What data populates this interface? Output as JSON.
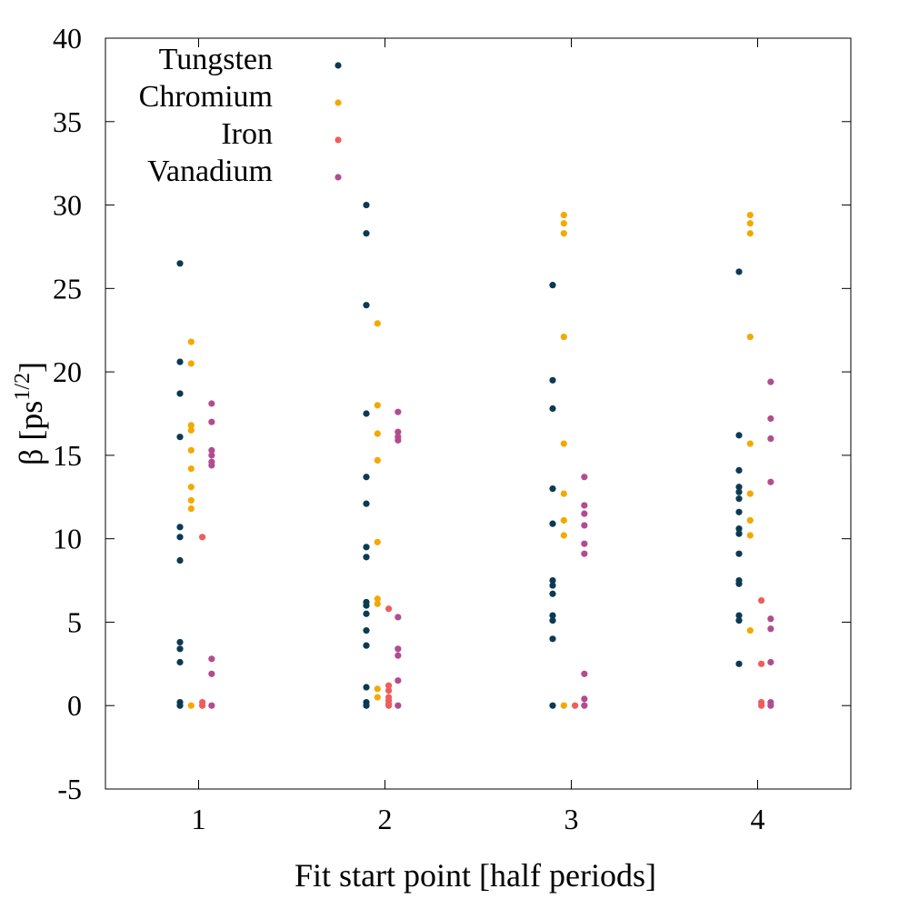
{
  "chart_data": {
    "type": "scatter",
    "title": "",
    "xlabel": "Fit start point [half periods]",
    "ylabel_main": "β [ps",
    "ylabel_exp": "1/2",
    "ylabel_end": "]",
    "xlim": [
      0.5,
      4.5
    ],
    "ylim": [
      -5,
      40
    ],
    "xticks": [
      1,
      2,
      3,
      4
    ],
    "xtick_labels": [
      "1",
      "2",
      "3",
      "4"
    ],
    "yticks": [
      -5,
      0,
      5,
      10,
      15,
      20,
      25,
      30,
      35,
      40
    ],
    "ytick_labels": [
      "-5",
      "0",
      "5",
      "10",
      "15",
      "20",
      "25",
      "30",
      "35",
      "40"
    ],
    "grid": false,
    "legend_position": "top-left",
    "series": [
      {
        "name": "Tungsten",
        "color": "#0b3a53",
        "offset": -0.1,
        "points": [
          [
            1,
            26.5
          ],
          [
            1,
            20.6
          ],
          [
            1,
            18.7
          ],
          [
            1,
            16.1
          ],
          [
            1,
            10.7
          ],
          [
            1,
            10.1
          ],
          [
            1,
            8.7
          ],
          [
            1,
            3.8
          ],
          [
            1,
            3.4
          ],
          [
            1,
            2.6
          ],
          [
            1,
            0.2
          ],
          [
            1,
            0.0
          ],
          [
            2,
            30.0
          ],
          [
            2,
            28.3
          ],
          [
            2,
            24.0
          ],
          [
            2,
            17.5
          ],
          [
            2,
            13.7
          ],
          [
            2,
            12.1
          ],
          [
            2,
            9.5
          ],
          [
            2,
            8.9
          ],
          [
            2,
            6.2
          ],
          [
            2,
            6.0
          ],
          [
            2,
            5.5
          ],
          [
            2,
            4.5
          ],
          [
            2,
            3.6
          ],
          [
            2,
            1.1
          ],
          [
            2,
            0.2
          ],
          [
            2,
            0.0
          ],
          [
            3,
            25.2
          ],
          [
            3,
            19.5
          ],
          [
            3,
            17.8
          ],
          [
            3,
            13.0
          ],
          [
            3,
            10.9
          ],
          [
            3,
            7.5
          ],
          [
            3,
            7.2
          ],
          [
            3,
            6.7
          ],
          [
            3,
            5.4
          ],
          [
            3,
            5.1
          ],
          [
            3,
            4.0
          ],
          [
            3,
            0.0
          ],
          [
            4,
            26.0
          ],
          [
            4,
            16.2
          ],
          [
            4,
            14.1
          ],
          [
            4,
            13.1
          ],
          [
            4,
            12.8
          ],
          [
            4,
            12.4
          ],
          [
            4,
            11.6
          ],
          [
            4,
            10.6
          ],
          [
            4,
            10.3
          ],
          [
            4,
            9.1
          ],
          [
            4,
            7.5
          ],
          [
            4,
            7.3
          ],
          [
            4,
            5.4
          ],
          [
            4,
            5.1
          ],
          [
            4,
            2.5
          ]
        ]
      },
      {
        "name": "Chromium",
        "color": "#f2a900",
        "offset": -0.04,
        "points": [
          [
            1,
            21.8
          ],
          [
            1,
            20.5
          ],
          [
            1,
            16.8
          ],
          [
            1,
            16.5
          ],
          [
            1,
            15.3
          ],
          [
            1,
            14.2
          ],
          [
            1,
            13.1
          ],
          [
            1,
            12.3
          ],
          [
            1,
            11.8
          ],
          [
            1,
            0.0
          ],
          [
            2,
            22.9
          ],
          [
            2,
            18.0
          ],
          [
            2,
            16.3
          ],
          [
            2,
            14.7
          ],
          [
            2,
            9.8
          ],
          [
            2,
            6.4
          ],
          [
            2,
            6.1
          ],
          [
            2,
            1.0
          ],
          [
            2,
            0.5
          ],
          [
            3,
            29.4
          ],
          [
            3,
            28.9
          ],
          [
            3,
            28.3
          ],
          [
            3,
            22.1
          ],
          [
            3,
            15.7
          ],
          [
            3,
            12.7
          ],
          [
            3,
            11.1
          ],
          [
            3,
            10.2
          ],
          [
            3,
            0.0
          ],
          [
            4,
            29.4
          ],
          [
            4,
            28.9
          ],
          [
            4,
            28.3
          ],
          [
            4,
            22.1
          ],
          [
            4,
            15.7
          ],
          [
            4,
            12.7
          ],
          [
            4,
            11.1
          ],
          [
            4,
            10.2
          ],
          [
            4,
            4.5
          ]
        ]
      },
      {
        "name": "Iron",
        "color": "#f05c5c",
        "offset": 0.02,
        "points": [
          [
            1,
            10.1
          ],
          [
            1,
            0.2
          ],
          [
            1,
            0.0
          ],
          [
            2,
            5.8
          ],
          [
            2,
            1.2
          ],
          [
            2,
            0.9
          ],
          [
            2,
            0.5
          ],
          [
            2,
            0.3
          ],
          [
            2,
            0.1
          ],
          [
            2,
            0.0
          ],
          [
            3,
            0.0
          ],
          [
            4,
            6.3
          ],
          [
            4,
            2.5
          ],
          [
            4,
            0.2
          ],
          [
            4,
            0.0
          ]
        ]
      },
      {
        "name": "Vanadium",
        "color": "#b24c90",
        "offset": 0.07,
        "points": [
          [
            1,
            18.1
          ],
          [
            1,
            17.0
          ],
          [
            1,
            15.3
          ],
          [
            1,
            15.0
          ],
          [
            1,
            14.6
          ],
          [
            1,
            14.4
          ],
          [
            1,
            2.8
          ],
          [
            1,
            1.9
          ],
          [
            1,
            0.0
          ],
          [
            2,
            17.6
          ],
          [
            2,
            16.4
          ],
          [
            2,
            16.1
          ],
          [
            2,
            15.9
          ],
          [
            2,
            5.3
          ],
          [
            2,
            3.4
          ],
          [
            2,
            3.0
          ],
          [
            2,
            1.5
          ],
          [
            2,
            0.0
          ],
          [
            3,
            13.7
          ],
          [
            3,
            12.0
          ],
          [
            3,
            11.5
          ],
          [
            3,
            10.8
          ],
          [
            3,
            9.7
          ],
          [
            3,
            9.1
          ],
          [
            3,
            1.9
          ],
          [
            3,
            0.4
          ],
          [
            3,
            0.0
          ],
          [
            4,
            19.4
          ],
          [
            4,
            17.2
          ],
          [
            4,
            16.0
          ],
          [
            4,
            13.4
          ],
          [
            4,
            5.2
          ],
          [
            4,
            4.6
          ],
          [
            4,
            2.6
          ],
          [
            4,
            0.2
          ],
          [
            4,
            0.0
          ]
        ]
      }
    ]
  }
}
